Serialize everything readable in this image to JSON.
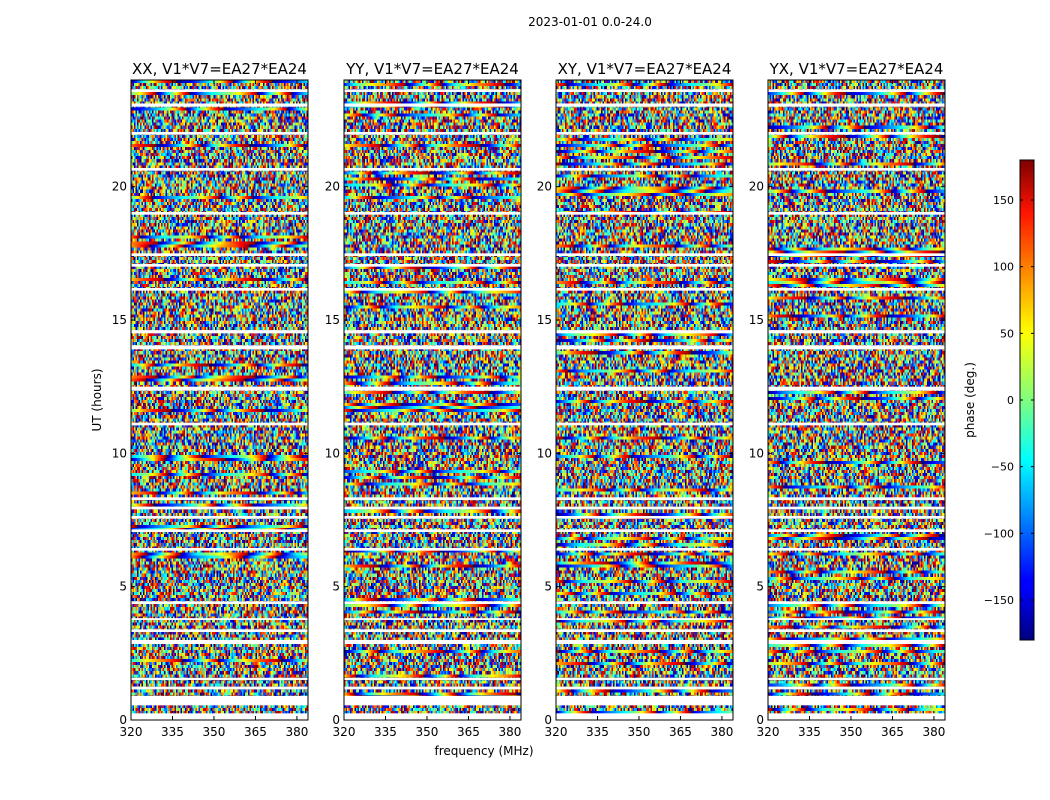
{
  "chart_data": {
    "type": "heatmap",
    "suptitle": "2023-01-01 0.0-24.0",
    "panels": [
      {
        "title": "XX, V1*V7=EA27*EA24",
        "pol": "XX"
      },
      {
        "title": "YY, V1*V7=EA27*EA24",
        "pol": "YY"
      },
      {
        "title": "XY, V1*V7=EA27*EA24",
        "pol": "XY"
      },
      {
        "title": "YX, V1*V7=EA27*EA24",
        "pol": "YX"
      }
    ],
    "xlabel": "frequency (MHz)",
    "ylabel": "UT (hours)",
    "xlim": [
      320,
      384
    ],
    "ylim": [
      0,
      24
    ],
    "xticks": [
      320,
      335,
      350,
      365,
      380
    ],
    "yticks": [
      0,
      5,
      10,
      15,
      20
    ],
    "colorbar": {
      "label": "phase (deg.)",
      "lim": [
        -180,
        180
      ],
      "ticks": [
        150,
        100,
        50,
        0,
        -50,
        -100,
        -150
      ],
      "tick_labels": [
        "150",
        "100",
        "50",
        "0",
        "−50",
        "−100",
        "−150"
      ],
      "colormap": "jet"
    },
    "flagged_bands_ut": [
      [
        0.0,
        0.25
      ],
      [
        0.55,
        0.9
      ],
      [
        1.15,
        1.25
      ],
      [
        1.5,
        1.58
      ],
      [
        2.85,
        3.0
      ],
      [
        3.3,
        3.4
      ],
      [
        3.75,
        3.82
      ],
      [
        4.35,
        4.45
      ],
      [
        6.35,
        6.45
      ],
      [
        7.05,
        7.15
      ],
      [
        7.55,
        7.65
      ],
      [
        7.9,
        8.0
      ],
      [
        8.25,
        8.35
      ],
      [
        11.05,
        11.15
      ],
      [
        12.35,
        12.5
      ],
      [
        13.9,
        14.05
      ],
      [
        14.5,
        14.62
      ],
      [
        16.1,
        16.2
      ],
      [
        17.0,
        17.1
      ],
      [
        17.4,
        17.5
      ],
      [
        18.95,
        19.05
      ],
      [
        20.6,
        20.7
      ],
      [
        21.95,
        22.05
      ],
      [
        23.0,
        23.12
      ],
      [
        23.55,
        23.65
      ]
    ],
    "flagged_color": "#ffffff"
  }
}
